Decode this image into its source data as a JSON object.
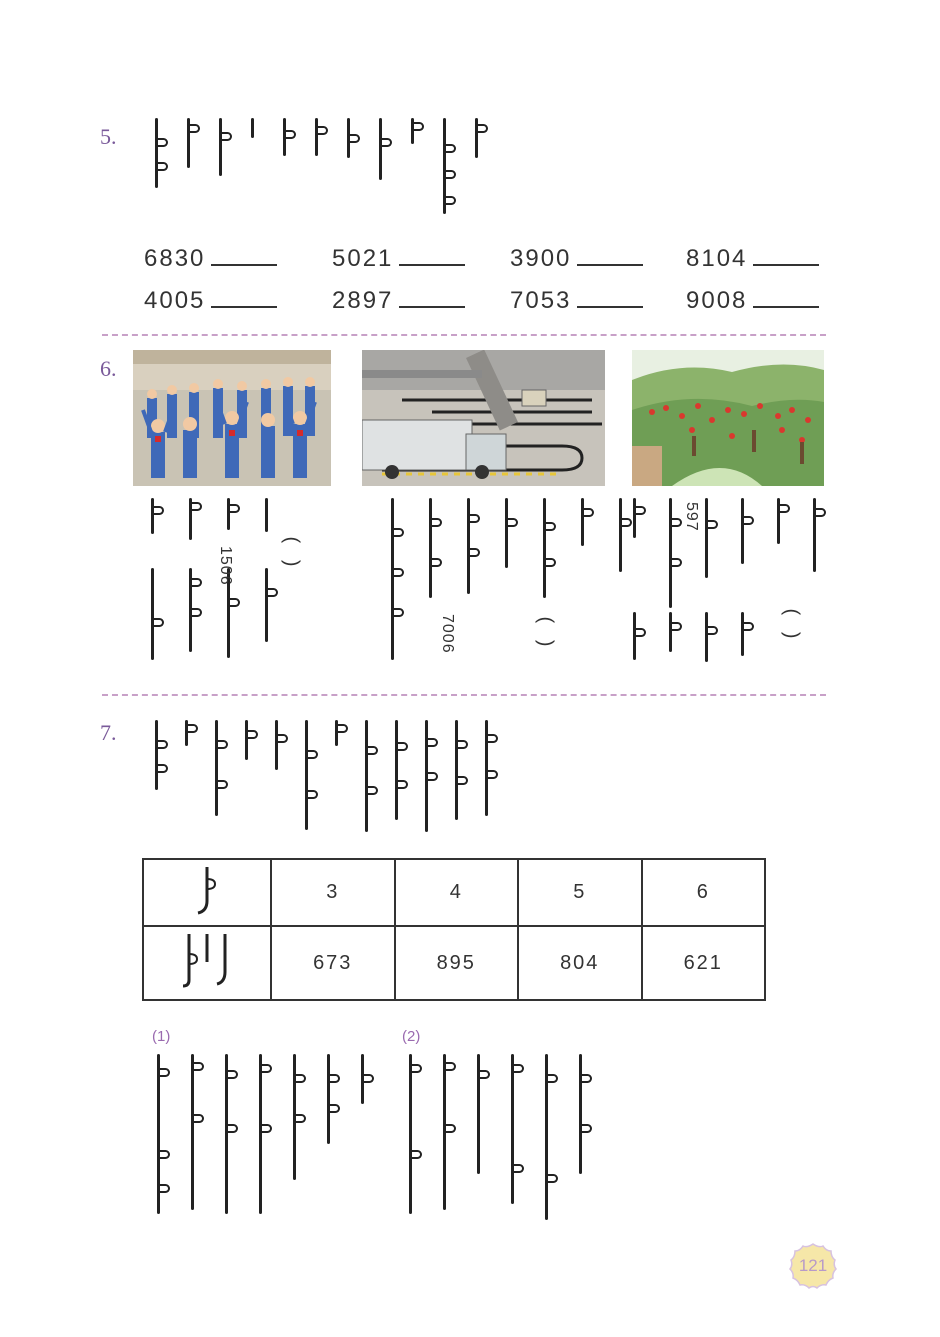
{
  "q5": {
    "number": "5.",
    "rows": [
      [
        "6830",
        "5021",
        "3900",
        "8104"
      ],
      [
        "4005",
        "2897",
        "7053",
        "9008"
      ]
    ]
  },
  "q6": {
    "number": "6.",
    "values": [
      "1506",
      "7006",
      "597"
    ]
  },
  "q7": {
    "number": "7.",
    "table": {
      "row1": [
        "3",
        "4",
        "5",
        "6"
      ],
      "row2": [
        "673",
        "895",
        "804",
        "621"
      ]
    },
    "sub1": "(1)",
    "sub2": "(2)"
  },
  "page_number": "121",
  "colors": {
    "accent": "#7a5a9a",
    "divider": "#c8a0c8",
    "badge": "#f6e7a8"
  }
}
